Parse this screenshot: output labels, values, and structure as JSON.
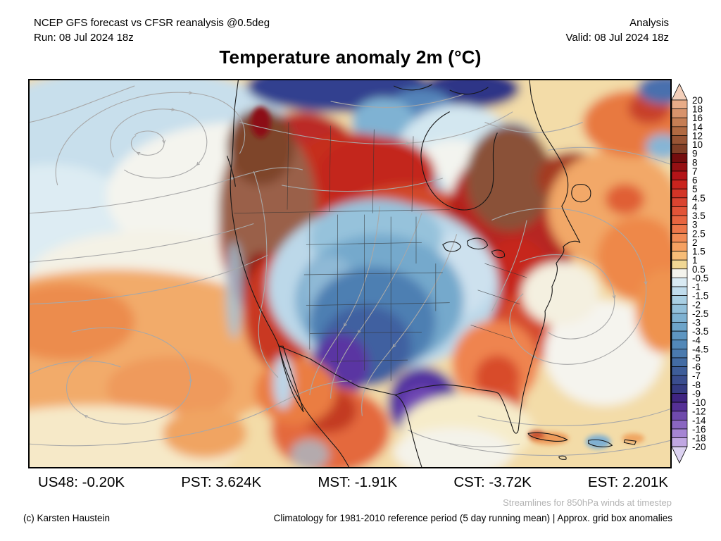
{
  "header": {
    "left_line1": "NCEP GFS forecast vs CFSR reanalysis @0.5deg",
    "left_line2": "Run: 08 Jul 2024 18z",
    "right_line1": "Analysis",
    "right_line2": "Valid: 08 Jul 2024 18z",
    "title": "Temperature anomaly 2m (°C)"
  },
  "stats": [
    {
      "label": "US48",
      "value": "-0.20K",
      "text": "US48: -0.20K"
    },
    {
      "label": "PST",
      "value": "3.624K",
      "text": "PST: 3.624K"
    },
    {
      "label": "MST",
      "value": "-1.91K",
      "text": "MST: -1.91K"
    },
    {
      "label": "CST",
      "value": "-3.72K",
      "text": "CST: -3.72K"
    },
    {
      "label": "EST",
      "value": "2.201K",
      "text": "EST: 2.201K"
    }
  ],
  "footer": {
    "streamlines_note": "Streamlines for 850hPa winds at timestep",
    "copyright": "(c) Karsten Haustein",
    "climatology_note": "Climatology for 1981-2010 reference period (5 day running mean) | Approx. grid box anomalies"
  },
  "colorbar": {
    "labels": [
      "20",
      "18",
      "16",
      "14",
      "12",
      "10",
      "9",
      "8",
      "7",
      "6",
      "5",
      "4.5",
      "4",
      "3.5",
      "3",
      "2.5",
      "2",
      "1.5",
      "1",
      "0.5",
      "-0.5",
      "-1",
      "-1.5",
      "-2",
      "-2.5",
      "-3",
      "-3.5",
      "-4",
      "-4.5",
      "-5",
      "-6",
      "-7",
      "-8",
      "-9",
      "-10",
      "-12",
      "-14",
      "-16",
      "-18",
      "-20"
    ],
    "segment_colors": [
      "#e8ac88",
      "#d8936c",
      "#c67e54",
      "#b16a42",
      "#985434",
      "#803e26",
      "#740d0e",
      "#951013",
      "#b31418",
      "#c9241e",
      "#d33527",
      "#da4430",
      "#e25438",
      "#e86540",
      "#ed774a",
      "#f18b55",
      "#f5a162",
      "#f6bc77",
      "#f0d794",
      "#f4f3ec",
      "#d9eaf3",
      "#c0dcec",
      "#a9cfe3",
      "#93c0da",
      "#7eb1d1",
      "#6da4c9",
      "#5e96c1",
      "#5288b8",
      "#4a7aae",
      "#436ca4",
      "#3e5d99",
      "#3a4d8e",
      "#353b82",
      "#3f2481",
      "#553096",
      "#6f4aac",
      "#8a66c1",
      "#a585d3",
      "#c0a7e2"
    ],
    "triangle_top_color": "#f3cfba",
    "triangle_bottom_color": "#dcd2f1"
  },
  "chart_data": {
    "type": "heatmap",
    "title": "Temperature anomaly 2m (°C)",
    "colorbar_levels": [
      20,
      18,
      16,
      14,
      12,
      10,
      9,
      8,
      7,
      6,
      5,
      4.5,
      4,
      3.5,
      3,
      2.5,
      2,
      1.5,
      1,
      0.5,
      -0.5,
      -1,
      -1.5,
      -2,
      -2.5,
      -3,
      -3.5,
      -4,
      -4.5,
      -5,
      -6,
      -7,
      -8,
      -9,
      -10,
      -12,
      -14,
      -16,
      -18,
      -20
    ],
    "region_anomalies_K": {
      "US48": -0.2,
      "PST": 3.624,
      "MST": -1.91,
      "CST": -3.72,
      "EST": 2.201
    },
    "notes": "Warm anomalies (brown/red, +8 to +16) over British Columbia / western Canada and Quebec / Labrador / NE US; cold anomalies (blue/purple, -4 to -12) over the central-southern US plains and Arctic islands; streamlines show 850hPa winds"
  }
}
